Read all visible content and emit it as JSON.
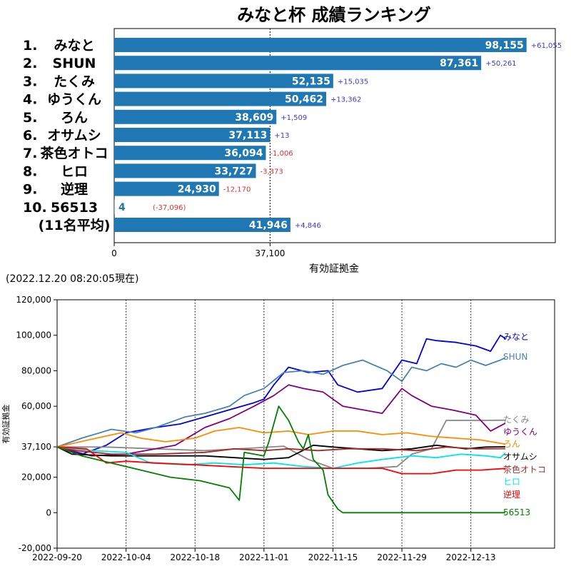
{
  "colors": {
    "bar": "#1f77b4",
    "positive_diff": "#3a3ad6",
    "negative_diff": "#e03030"
  },
  "timestamp": "(2022.12.20 08:20:05現在)",
  "chart_data": [
    {
      "type": "bar",
      "orientation": "horizontal",
      "title": "みなと杯 成績ランキング",
      "xlabel": "有効証拠金",
      "xlim": [
        0,
        105000
      ],
      "xticks": [
        "0",
        "37,100"
      ],
      "reference_line": 37100,
      "grid": false,
      "rows": [
        {
          "rank": "1.",
          "name": "みなと",
          "value": 98155,
          "value_label": "98,155",
          "diff": "+61,055",
          "sign": "pos"
        },
        {
          "rank": "2.",
          "name": "SHUN",
          "value": 87361,
          "value_label": "87,361",
          "diff": "+50,261",
          "sign": "pos"
        },
        {
          "rank": "3.",
          "name": "たくみ",
          "value": 52135,
          "value_label": "52,135",
          "diff": "+15,035",
          "sign": "pos"
        },
        {
          "rank": "4.",
          "name": "ゆうくん",
          "value": 50462,
          "value_label": "50,462",
          "diff": "+13,362",
          "sign": "pos"
        },
        {
          "rank": "5.",
          "name": "ろん",
          "value": 38609,
          "value_label": "38,609",
          "diff": "+1,509",
          "sign": "pos"
        },
        {
          "rank": "6.",
          "name": "オサムシ",
          "value": 37113,
          "value_label": "37,113",
          "diff": "+13",
          "sign": "pos"
        },
        {
          "rank": "7.",
          "name": "茶色オトコ",
          "value": 36094,
          "value_label": "36,094",
          "diff": "-1,006",
          "sign": "neg"
        },
        {
          "rank": "8.",
          "name": "ヒロ",
          "value": 33727,
          "value_label": "33,727",
          "diff": "-3,373",
          "sign": "neg"
        },
        {
          "rank": "9.",
          "name": "逆理",
          "value": 24930,
          "value_label": "24,930",
          "diff": "-12,170",
          "sign": "neg"
        },
        {
          "rank": "10.",
          "name": "56513",
          "value": 4,
          "value_label": "4",
          "diff": "(-37,096)",
          "sign": "neg"
        },
        {
          "rank": "",
          "name": "(11名平均)",
          "value": 41946,
          "value_label": "41,946",
          "diff": "+4,846",
          "sign": "pos"
        }
      ]
    },
    {
      "type": "line",
      "ylabel": "有効証拠金",
      "xlim": [
        "2022-09-20",
        "2022-12-30"
      ],
      "ylim": [
        -20000,
        120000
      ],
      "yticks": [
        "-20,000",
        "0",
        "20,000",
        "37,100",
        "60,000",
        "80,000",
        "100,000",
        "120,000"
      ],
      "ytick_values": [
        -20000,
        0,
        20000,
        37100,
        60000,
        80000,
        100000,
        120000
      ],
      "xticks": [
        "2022-09-20",
        "2022-10-04",
        "2022-10-18",
        "2022-11-01",
        "2022-11-15",
        "2022-11-29",
        "2022-12-13"
      ],
      "vlines": [
        "2022-10-04",
        "2022-10-18",
        "2022-11-01",
        "2022-11-15",
        "2022-11-29",
        "2022-12-13"
      ],
      "series": [
        {
          "name": "みなと",
          "color": "#0000e0",
          "points": [
            [
              "2022-09-20",
              37100
            ],
            [
              "2022-09-25",
              33000
            ],
            [
              "2022-09-30",
              38000
            ],
            [
              "2022-10-04",
              45000
            ],
            [
              "2022-10-10",
              48000
            ],
            [
              "2022-10-15",
              50000
            ],
            [
              "2022-10-20",
              54000
            ],
            [
              "2022-10-25",
              58000
            ],
            [
              "2022-10-30",
              62000
            ],
            [
              "2022-11-01",
              64000
            ],
            [
              "2022-11-03",
              72000
            ],
            [
              "2022-11-06",
              82000
            ],
            [
              "2022-11-10",
              79000
            ],
            [
              "2022-11-14",
              80000
            ],
            [
              "2022-11-16",
              72000
            ],
            [
              "2022-11-20",
              68000
            ],
            [
              "2022-11-25",
              70000
            ],
            [
              "2022-11-29",
              86000
            ],
            [
              "2022-12-02",
              84000
            ],
            [
              "2022-12-04",
              98000
            ],
            [
              "2022-12-06",
              97000
            ],
            [
              "2022-12-10",
              96000
            ],
            [
              "2022-12-14",
              94000
            ],
            [
              "2022-12-17",
              91000
            ],
            [
              "2022-12-19",
              100000
            ],
            [
              "2022-12-20",
              98155
            ]
          ]
        },
        {
          "name": "SHUN",
          "color": "#4682b4",
          "points": [
            [
              "2022-09-20",
              37100
            ],
            [
              "2022-09-25",
              42000
            ],
            [
              "2022-10-01",
              47000
            ],
            [
              "2022-10-06",
              45000
            ],
            [
              "2022-10-10",
              48000
            ],
            [
              "2022-10-16",
              54000
            ],
            [
              "2022-10-20",
              56000
            ],
            [
              "2022-10-25",
              60000
            ],
            [
              "2022-10-28",
              66000
            ],
            [
              "2022-11-01",
              70000
            ],
            [
              "2022-11-05",
              79000
            ],
            [
              "2022-11-09",
              80000
            ],
            [
              "2022-11-13",
              78000
            ],
            [
              "2022-11-17",
              83000
            ],
            [
              "2022-11-21",
              86000
            ],
            [
              "2022-11-26",
              80000
            ],
            [
              "2022-11-29",
              74000
            ],
            [
              "2022-12-01",
              82000
            ],
            [
              "2022-12-04",
              80000
            ],
            [
              "2022-12-07",
              84000
            ],
            [
              "2022-12-10",
              82000
            ],
            [
              "2022-12-13",
              86000
            ],
            [
              "2022-12-16",
              83000
            ],
            [
              "2022-12-19",
              86000
            ],
            [
              "2022-12-20",
              87361
            ]
          ]
        },
        {
          "name": "たくみ",
          "color": "#888888",
          "points": [
            [
              "2022-09-20",
              37100
            ],
            [
              "2022-09-30",
              37000
            ],
            [
              "2022-10-10",
              36000
            ],
            [
              "2022-10-20",
              35000
            ],
            [
              "2022-10-30",
              36500
            ],
            [
              "2022-11-05",
              37500
            ],
            [
              "2022-11-10",
              30000
            ],
            [
              "2022-11-15",
              25000
            ],
            [
              "2022-11-22",
              25000
            ],
            [
              "2022-11-28",
              26000
            ],
            [
              "2022-12-01",
              33000
            ],
            [
              "2022-12-05",
              36000
            ],
            [
              "2022-12-08",
              52000
            ],
            [
              "2022-12-12",
              52000
            ],
            [
              "2022-12-16",
              52000
            ],
            [
              "2022-12-20",
              52135
            ]
          ]
        },
        {
          "name": "ゆうくん",
          "color": "#800080",
          "points": [
            [
              "2022-09-20",
              37100
            ],
            [
              "2022-09-27",
              32000
            ],
            [
              "2022-10-04",
              33000
            ],
            [
              "2022-10-10",
              36000
            ],
            [
              "2022-10-14",
              38000
            ],
            [
              "2022-10-20",
              48000
            ],
            [
              "2022-10-25",
              53000
            ],
            [
              "2022-10-30",
              60000
            ],
            [
              "2022-11-03",
              66000
            ],
            [
              "2022-11-06",
              72000
            ],
            [
              "2022-11-09",
              70000
            ],
            [
              "2022-11-13",
              68000
            ],
            [
              "2022-11-17",
              60000
            ],
            [
              "2022-11-21",
              58000
            ],
            [
              "2022-11-25",
              56000
            ],
            [
              "2022-11-29",
              70000
            ],
            [
              "2022-12-01",
              66000
            ],
            [
              "2022-12-05",
              60000
            ],
            [
              "2022-12-09",
              58000
            ],
            [
              "2022-12-14",
              55000
            ],
            [
              "2022-12-17",
              46000
            ],
            [
              "2022-12-20",
              50462
            ]
          ]
        },
        {
          "name": "ろん",
          "color": "#ff8c00",
          "points": [
            [
              "2022-09-20",
              37100
            ],
            [
              "2022-09-28",
              42000
            ],
            [
              "2022-10-03",
              45000
            ],
            [
              "2022-10-07",
              42000
            ],
            [
              "2022-10-12",
              40000
            ],
            [
              "2022-10-18",
              42000
            ],
            [
              "2022-10-22",
              46000
            ],
            [
              "2022-10-27",
              48000
            ],
            [
              "2022-11-01",
              45000
            ],
            [
              "2022-11-06",
              46000
            ],
            [
              "2022-11-10",
              44000
            ],
            [
              "2022-11-15",
              46000
            ],
            [
              "2022-11-20",
              46000
            ],
            [
              "2022-11-25",
              44000
            ],
            [
              "2022-11-30",
              45000
            ],
            [
              "2022-12-05",
              43000
            ],
            [
              "2022-12-10",
              42000
            ],
            [
              "2022-12-15",
              41000
            ],
            [
              "2022-12-20",
              38609
            ]
          ]
        },
        {
          "name": "オサムシ",
          "color": "#000000",
          "points": [
            [
              "2022-09-20",
              37100
            ],
            [
              "2022-09-23",
              33000
            ],
            [
              "2022-10-01",
              32000
            ],
            [
              "2022-10-10",
              32000
            ],
            [
              "2022-10-20",
              32000
            ],
            [
              "2022-10-26",
              31000
            ],
            [
              "2022-11-01",
              30000
            ],
            [
              "2022-11-06",
              31000
            ],
            [
              "2022-11-11",
              38000
            ],
            [
              "2022-11-15",
              37000
            ],
            [
              "2022-11-20",
              36000
            ],
            [
              "2022-11-25",
              35000
            ],
            [
              "2022-12-01",
              36000
            ],
            [
              "2022-12-06",
              38000
            ],
            [
              "2022-12-12",
              36000
            ],
            [
              "2022-12-16",
              37000
            ],
            [
              "2022-12-20",
              37113
            ]
          ]
        },
        {
          "name": "茶色オトコ",
          "color": "#a52a2a",
          "points": [
            [
              "2022-09-20",
              37100
            ],
            [
              "2022-09-24",
              35000
            ],
            [
              "2022-10-01",
              33000
            ],
            [
              "2022-10-10",
              33000
            ],
            [
              "2022-10-20",
              34000
            ],
            [
              "2022-10-26",
              36000
            ],
            [
              "2022-11-01",
              35000
            ],
            [
              "2022-11-06",
              36000
            ],
            [
              "2022-11-12",
              35000
            ],
            [
              "2022-11-18",
              36000
            ],
            [
              "2022-11-25",
              36000
            ],
            [
              "2022-12-02",
              35000
            ],
            [
              "2022-12-08",
              37000
            ],
            [
              "2022-12-14",
              36000
            ],
            [
              "2022-12-20",
              36094
            ]
          ]
        },
        {
          "name": "ヒロ",
          "color": "#00e5ee",
          "points": [
            [
              "2022-09-20",
              37100
            ],
            [
              "2022-09-27",
              35000
            ],
            [
              "2022-10-04",
              34000
            ],
            [
              "2022-10-09",
              28000
            ],
            [
              "2022-10-16",
              27000
            ],
            [
              "2022-10-22",
              28000
            ],
            [
              "2022-10-28",
              27000
            ],
            [
              "2022-11-03",
              28000
            ],
            [
              "2022-11-09",
              26000
            ],
            [
              "2022-11-15",
              25000
            ],
            [
              "2022-11-20",
              28000
            ],
            [
              "2022-11-25",
              30000
            ],
            [
              "2022-12-01",
              32000
            ],
            [
              "2022-12-06",
              31000
            ],
            [
              "2022-12-11",
              33000
            ],
            [
              "2022-12-16",
              32000
            ],
            [
              "2022-12-19",
              31000
            ],
            [
              "2022-12-20",
              33727
            ]
          ]
        },
        {
          "name": "逆理",
          "color": "#ff0000",
          "points": [
            [
              "2022-09-20",
              37100
            ],
            [
              "2022-09-26",
              36000
            ],
            [
              "2022-09-30",
              28000
            ],
            [
              "2022-10-04",
              29000
            ],
            [
              "2022-10-10",
              28000
            ],
            [
              "2022-10-18",
              27000
            ],
            [
              "2022-10-25",
              26000
            ],
            [
              "2022-11-01",
              25000
            ],
            [
              "2022-11-10",
              25000
            ],
            [
              "2022-11-20",
              25000
            ],
            [
              "2022-11-25",
              25000
            ],
            [
              "2022-11-29",
              22000
            ],
            [
              "2022-12-05",
              22000
            ],
            [
              "2022-12-10",
              24000
            ],
            [
              "2022-12-15",
              24000
            ],
            [
              "2022-12-20",
              24930
            ]
          ]
        },
        {
          "name": "56513",
          "color": "#008000",
          "points": [
            [
              "2022-09-20",
              37100
            ],
            [
              "2022-09-25",
              32000
            ],
            [
              "2022-10-01",
              28000
            ],
            [
              "2022-10-07",
              24000
            ],
            [
              "2022-10-13",
              20000
            ],
            [
              "2022-10-19",
              18000
            ],
            [
              "2022-10-22",
              16000
            ],
            [
              "2022-10-25",
              14000
            ],
            [
              "2022-10-27",
              7000
            ],
            [
              "2022-10-28",
              34000
            ],
            [
              "2022-11-01",
              32000
            ],
            [
              "2022-11-02",
              40000
            ],
            [
              "2022-11-04",
              60000
            ],
            [
              "2022-11-06",
              52000
            ],
            [
              "2022-11-08",
              40000
            ],
            [
              "2022-11-09",
              36000
            ],
            [
              "2022-11-10",
              44000
            ],
            [
              "2022-11-11",
              30000
            ],
            [
              "2022-11-13",
              24000
            ],
            [
              "2022-11-14",
              10000
            ],
            [
              "2022-11-16",
              2000
            ],
            [
              "2022-11-17",
              0
            ],
            [
              "2022-12-20",
              4
            ]
          ]
        }
      ]
    }
  ]
}
